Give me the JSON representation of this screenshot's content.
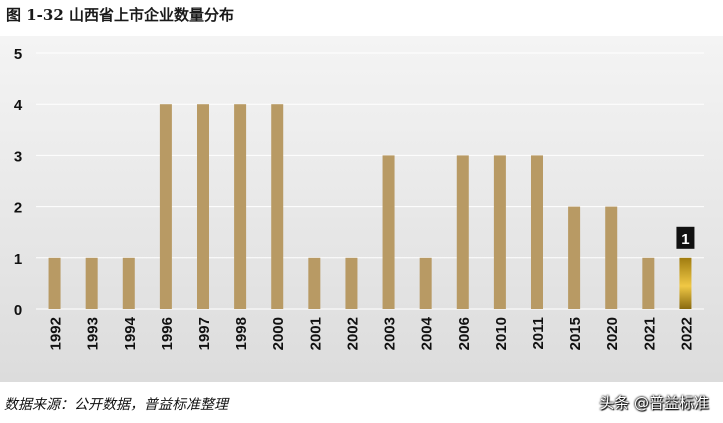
{
  "figure": {
    "title": "图 1-32  山西省上市企业数量分布",
    "source": "数据来源：公开数据，普益标准整理",
    "watermark": "头条 @普益标准"
  },
  "colors": {
    "bar": "#b89a64",
    "highlight_top": "#a07c10",
    "highlight_mid": "#f0c845",
    "highlight_bottom": "#8a6a10",
    "grid": "#ffffff",
    "label_box": "#111111",
    "label_text": "#ffffff"
  },
  "chart_data": {
    "type": "bar",
    "title": "",
    "xlabel": "",
    "ylabel": "",
    "categories": [
      "1992",
      "1993",
      "1994",
      "1996",
      "1997",
      "1998",
      "2000",
      "2001",
      "2002",
      "2003",
      "2004",
      "2006",
      "2010",
      "2011",
      "2015",
      "2020",
      "2021",
      "2022"
    ],
    "values": [
      1,
      1,
      1,
      4,
      4,
      4,
      4,
      1,
      1,
      3,
      1,
      3,
      3,
      3,
      2,
      2,
      1,
      1
    ],
    "ylim": [
      0,
      5
    ],
    "yticks": [
      "0",
      "1",
      "2",
      "3",
      "4",
      "5"
    ],
    "grid": true,
    "highlight_index": 17,
    "data_labels": [
      {
        "index": 17,
        "text": "1"
      }
    ]
  }
}
